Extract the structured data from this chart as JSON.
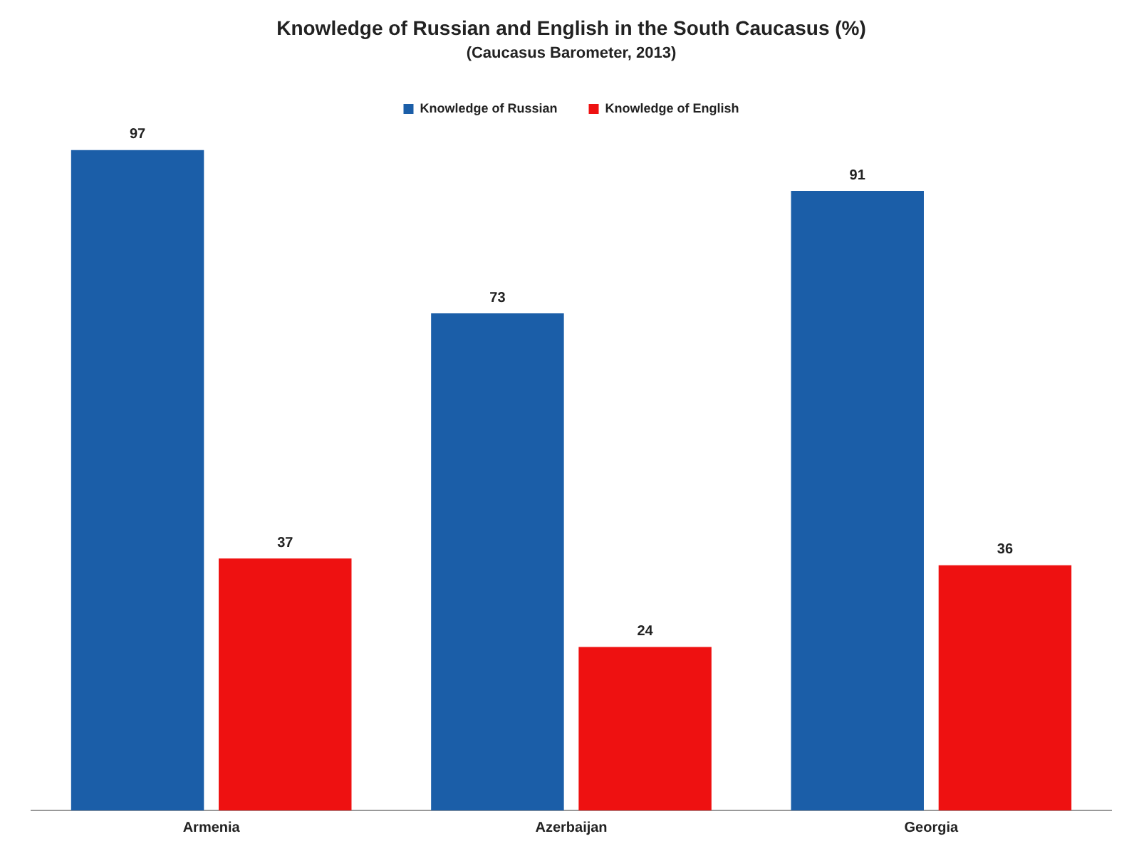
{
  "chart_data": {
    "type": "bar",
    "title": "Knowledge of Russian and English in the South Caucasus (%)",
    "subtitle": "(Caucasus Barometer, 2013)",
    "categories": [
      "Armenia",
      "Azerbaijan",
      "Georgia"
    ],
    "series": [
      {
        "name": "Knowledge of Russian",
        "color": "#1b5ea8",
        "values": [
          97,
          73,
          91
        ]
      },
      {
        "name": "Knowledge of English",
        "color": "#ee1111",
        "values": [
          37,
          24,
          36
        ]
      }
    ],
    "data_labels": true,
    "grid": false,
    "legend": "top"
  }
}
